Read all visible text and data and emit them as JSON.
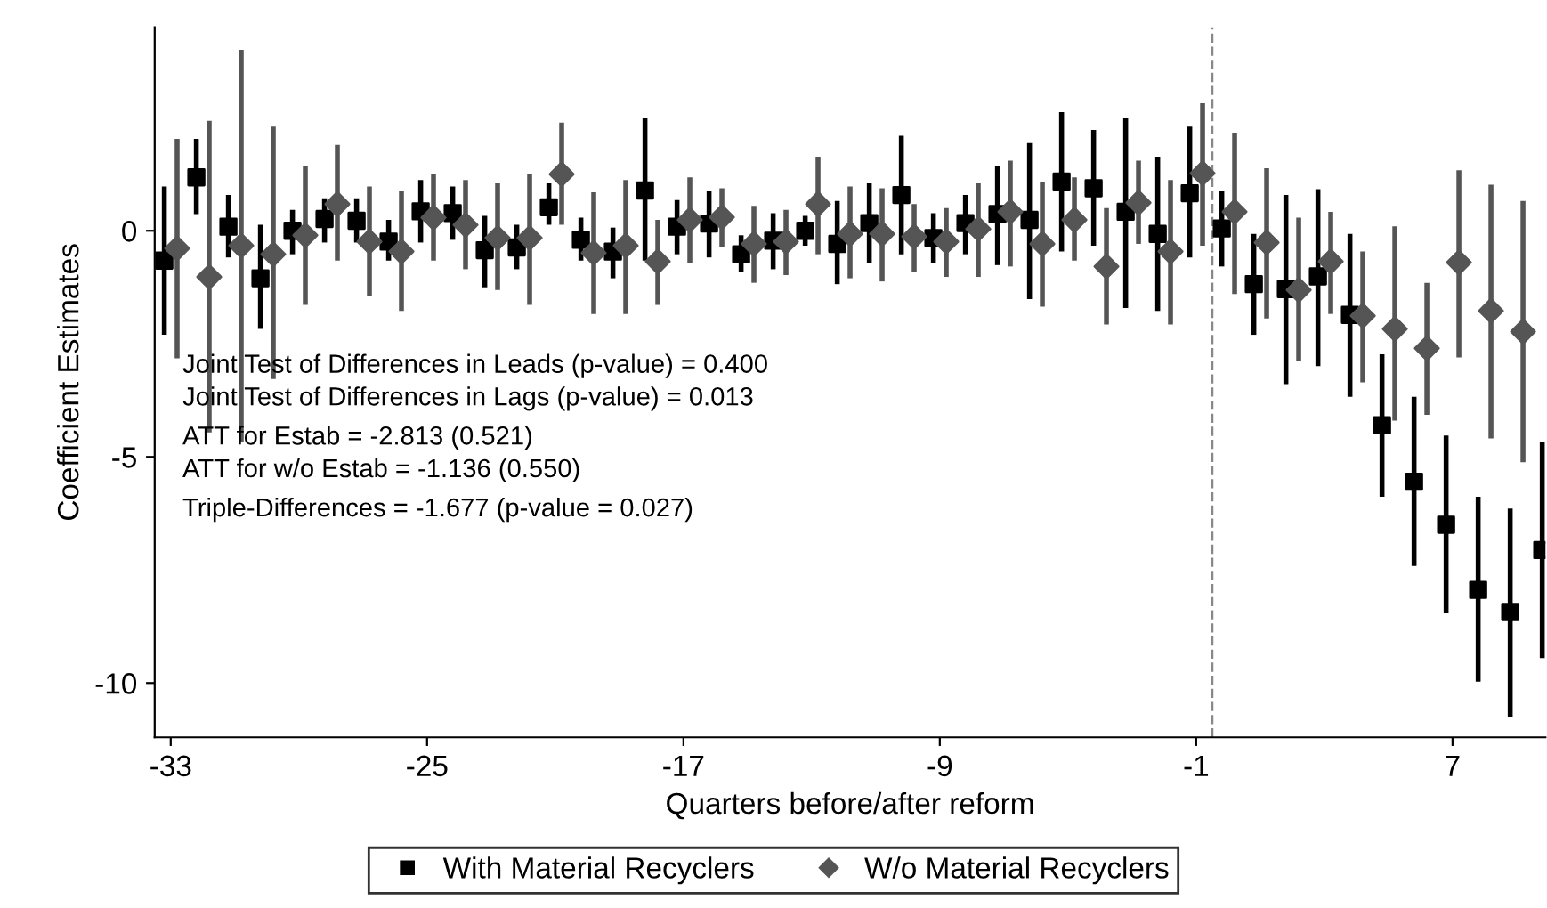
{
  "chart_data": {
    "type": "scatter",
    "xlabel": "Quarters before/after reform",
    "ylabel": "Coefficient Estimates",
    "xlim": [
      -33.5,
      9.9
    ],
    "ylim": [
      -11.2,
      4.5
    ],
    "xticks": [
      -33,
      -25,
      -17,
      -9,
      -1,
      7
    ],
    "yticks": [
      -10,
      -5,
      0
    ],
    "grid": false,
    "legend": "bottom",
    "ref_lines": [
      {
        "axis": "x",
        "value": -0.5,
        "color": "#888888",
        "line_style": "dashed"
      }
    ],
    "annotations": [
      "Joint Test of Differences in Leads (p-value) = 0.400",
      "Joint Test of Differences in Lags (p-value) = 0.013",
      "ATT for Estab = -2.813 (0.521)",
      "ATT for w/o Estab = -1.136 (0.550)",
      "Triple-Differences = -1.677 (p-value = 0.027)"
    ],
    "series": [
      {
        "name": "With Material Recyclers",
        "color": "#000000",
        "marker": "square",
        "x": [
          -33.2,
          -32.2,
          -31.2,
          -30.2,
          -29.2,
          -28.2,
          -27.2,
          -26.2,
          -25.2,
          -24.2,
          -23.2,
          -22.2,
          -21.2,
          -20.2,
          -19.2,
          -18.2,
          -17.2,
          -16.2,
          -15.2,
          -14.2,
          -13.2,
          -12.2,
          -11.2,
          -10.2,
          -9.2,
          -8.2,
          -7.2,
          -6.2,
          -5.2,
          -4.2,
          -3.2,
          -2.2,
          -1.2,
          -0.2,
          0.8,
          1.8,
          2.8,
          3.8,
          4.8,
          5.8,
          6.8,
          7.8,
          8.8,
          9.8
        ],
        "values": [
          -0.66,
          1.18,
          0.09,
          -1.05,
          0,
          0.26,
          0.22,
          -0.24,
          0.43,
          0.39,
          -0.43,
          -0.37,
          0.52,
          -0.2,
          -0.46,
          0.89,
          0.09,
          0.16,
          -0.52,
          -0.22,
          0,
          -0.29,
          0.17,
          0.79,
          -0.16,
          0.17,
          0.37,
          0.24,
          1.09,
          0.94,
          0.42,
          -0.07,
          0.83,
          0.05,
          -1.18,
          -1.29,
          -1.01,
          -1.86,
          -4.3,
          -5.55,
          -6.5,
          -7.94,
          -8.43,
          -7.06
        ],
        "errors": [
          [
            -2.3,
            0.98
          ],
          [
            0.37,
            2.03
          ],
          [
            -0.59,
            0.79
          ],
          [
            -2.17,
            0.13
          ],
          [
            -0.52,
            0.46
          ],
          [
            -0.26,
            0.72
          ],
          [
            -0.26,
            0.72
          ],
          [
            -0.66,
            0.24
          ],
          [
            -0.26,
            1.12
          ],
          [
            -0.2,
            0.98
          ],
          [
            -1.25,
            0.33
          ],
          [
            -0.85,
            0.13
          ],
          [
            0.13,
            1.05
          ],
          [
            -0.66,
            0.29
          ],
          [
            -1.05,
            0.07
          ],
          [
            -0.66,
            2.49
          ],
          [
            -0.52,
            0.68
          ],
          [
            -0.59,
            0.89
          ],
          [
            -0.92,
            -0.1
          ],
          [
            -0.85,
            0.39
          ],
          [
            -0.33,
            0.33
          ],
          [
            -1.18,
            0.66
          ],
          [
            -0.72,
            1.05
          ],
          [
            -0.52,
            2.1
          ],
          [
            -0.72,
            0.39
          ],
          [
            -0.52,
            0.79
          ],
          [
            -0.76,
            1.44
          ],
          [
            -1.51,
            1.94
          ],
          [
            -0.46,
            2.62
          ],
          [
            -0.33,
            2.23
          ],
          [
            -1.71,
            2.49
          ],
          [
            -1.77,
            1.64
          ],
          [
            -0.59,
            2.3
          ],
          [
            -0.79,
            0.89
          ],
          [
            -2.3,
            -0.07
          ],
          [
            -3.39,
            0.79
          ],
          [
            -2.99,
            0.92
          ],
          [
            -3.67,
            -0.07
          ],
          [
            -5.88,
            -2.73
          ],
          [
            -7.41,
            -3.67
          ],
          [
            -8.46,
            -4.53
          ],
          [
            -9.97,
            -5.88
          ],
          [
            -10.76,
            -6.14
          ],
          [
            -9.45,
            -4.66
          ]
        ]
      },
      {
        "name": "W/o Material Recyclers",
        "color": "#555555",
        "marker": "diamond",
        "x": [
          -32.8,
          -31.8,
          -30.8,
          -29.8,
          -28.8,
          -27.8,
          -26.8,
          -25.8,
          -24.8,
          -23.8,
          -22.8,
          -21.8,
          -20.8,
          -19.8,
          -18.8,
          -17.8,
          -16.8,
          -15.8,
          -14.8,
          -13.8,
          -12.8,
          -11.8,
          -10.8,
          -9.8,
          -8.8,
          -7.8,
          -6.8,
          -5.8,
          -4.8,
          -3.8,
          -2.8,
          -1.8,
          -0.8,
          0.2,
          1.2,
          2.2,
          3.2,
          4.2,
          5.2,
          6.2,
          7.2,
          8.2,
          9.2
        ],
        "values": [
          -0.39,
          -1.02,
          -0.33,
          -0.52,
          -0.1,
          0.59,
          -0.24,
          -0.46,
          0.29,
          0.13,
          -0.16,
          -0.16,
          1.25,
          -0.49,
          -0.33,
          -0.68,
          0.24,
          0.3,
          -0.29,
          -0.24,
          0.59,
          -0.07,
          -0.07,
          -0.13,
          -0.24,
          0.04,
          0.42,
          -0.29,
          0.24,
          -0.79,
          0.62,
          -0.46,
          1.27,
          0.42,
          -0.26,
          -1.31,
          -0.68,
          -1.88,
          -2.17,
          -2.6,
          -0.7,
          -1.77,
          -2.23
        ],
        "errors": [
          [
            -2.82,
            2.03
          ],
          [
            -4.46,
            2.43
          ],
          [
            -4.66,
            4.0
          ],
          [
            -3.28,
            2.3
          ],
          [
            -1.64,
            1.44
          ],
          [
            -0.66,
            1.9
          ],
          [
            -1.44,
            0.98
          ],
          [
            -1.77,
            0.89
          ],
          [
            -0.66,
            1.25
          ],
          [
            -0.85,
            1.12
          ],
          [
            -1.31,
            1.05
          ],
          [
            -1.64,
            1.25
          ],
          [
            0.13,
            2.39
          ],
          [
            -1.84,
            0.85
          ],
          [
            -1.84,
            1.12
          ],
          [
            -1.64,
            0.24
          ],
          [
            -0.72,
            1.18
          ],
          [
            -0.37,
            0.94
          ],
          [
            -1.15,
            0.55
          ],
          [
            -0.98,
            0.46
          ],
          [
            -0.52,
            1.64
          ],
          [
            -1.05,
            0.98
          ],
          [
            -1.12,
            0.94
          ],
          [
            -0.92,
            0.59
          ],
          [
            -1.02,
            0.5
          ],
          [
            -1.02,
            1.05
          ],
          [
            -0.79,
            1.55
          ],
          [
            -1.68,
            1.08
          ],
          [
            -0.66,
            1.18
          ],
          [
            -2.07,
            0.5
          ],
          [
            -0.29,
            1.55
          ],
          [
            -2.07,
            1.12
          ],
          [
            -0.33,
            2.82
          ],
          [
            -1.4,
            2.17
          ],
          [
            -1.94,
            1.38
          ],
          [
            -2.89,
            0.29
          ],
          [
            -1.84,
            0.42
          ],
          [
            -3.35,
            -0.46
          ],
          [
            -4.2,
            0.1
          ],
          [
            -4.07,
            -1.15
          ],
          [
            -2.8,
            1.34
          ],
          [
            -4.59,
            1.02
          ],
          [
            -5.12,
            0.66
          ]
        ]
      }
    ]
  }
}
